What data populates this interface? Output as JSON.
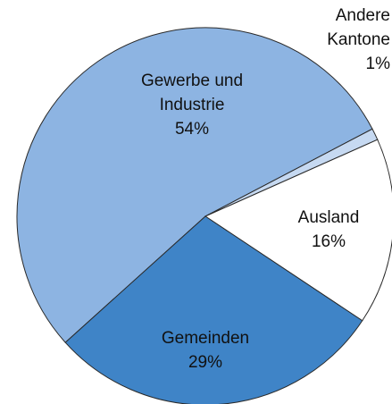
{
  "chart_data": {
    "type": "pie",
    "categories": [
      "Gewerbe und Industrie",
      "Andere Kantone",
      "Ausland",
      "Gemeinden"
    ],
    "values": [
      54,
      1,
      16,
      29
    ],
    "value_labels": [
      "54%",
      "1%",
      "16%",
      "29%"
    ],
    "colors": [
      "#8db4e2",
      "#c6d9f1",
      "#ffffff",
      "#3f84c7"
    ]
  }
}
